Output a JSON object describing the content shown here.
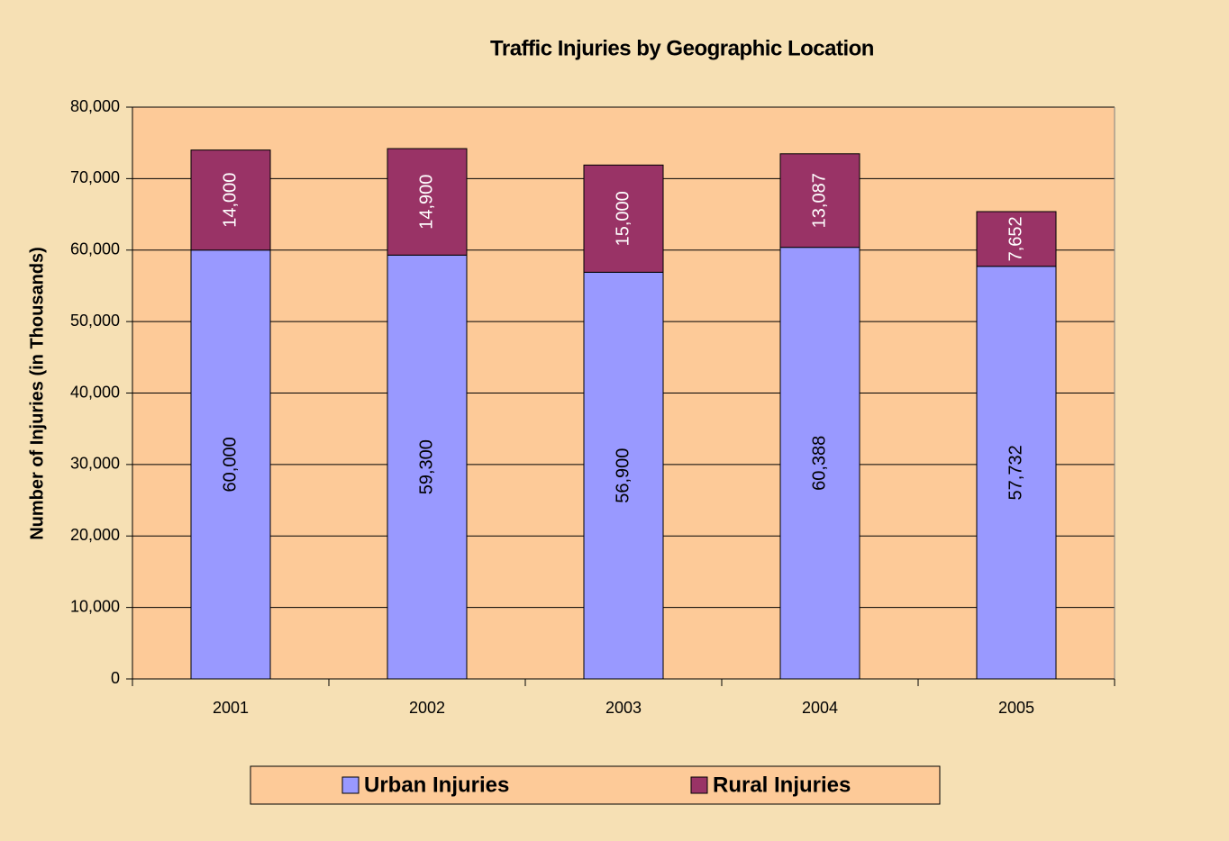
{
  "chart_data": {
    "type": "stacked_bar",
    "title": "Traffic Injuries by Geographic Location",
    "y_label": "Number of Injuries (in Thousands)",
    "categories": [
      "2001",
      "2002",
      "2003",
      "2004",
      "2005"
    ],
    "series": [
      {
        "name": "Urban Injuries",
        "color": "#9999ff",
        "values": [
          60000,
          59300,
          56900,
          60388,
          57732
        ],
        "value_labels": [
          "60,000",
          "59,300",
          "56,900",
          "60,388",
          "57,732"
        ]
      },
      {
        "name": "Rural Injuries",
        "color": "#993366",
        "values": [
          14000,
          14900,
          15000,
          13087,
          7652
        ],
        "value_labels": [
          "14,000",
          "14,900",
          "15,000",
          "13,087",
          "7,652"
        ]
      }
    ],
    "ylim": [
      0,
      80000
    ],
    "yticks": [
      0,
      {
        "value": 10000,
        "label": "10,000"
      },
      {
        "value": 20000,
        "label": "20,000"
      },
      {
        "value": 30000,
        "label": "30,000"
      },
      {
        "value": 40000,
        "label": "40,000"
      },
      {
        "value": 50000,
        "label": "50,000"
      },
      {
        "value": 60000,
        "label": "60,000"
      },
      {
        "value": 70000,
        "label": "70,000"
      },
      {
        "value": 80000,
        "label": "80,000"
      }
    ],
    "grid": true,
    "legend": "bottom"
  }
}
